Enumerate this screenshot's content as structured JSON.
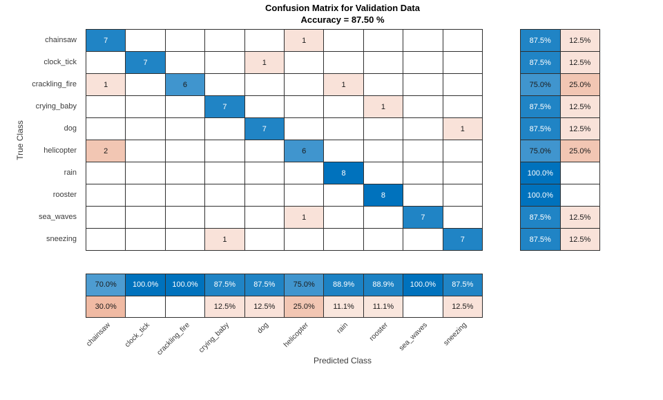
{
  "header": {
    "title": "Confusion Matrix for Validation Data",
    "subtitle": "Accuracy = 87.50 %"
  },
  "axes": {
    "xlabel": "Predicted Class",
    "ylabel": "True Class"
  },
  "chart_data": {
    "type": "heatmap",
    "title": "Confusion Matrix for Validation Data",
    "subtitle": "Accuracy = 87.50 %",
    "xlabel": "Predicted Class",
    "ylabel": "True Class",
    "classes": [
      "chainsaw",
      "clock_tick",
      "crackling_fire",
      "crying_baby",
      "dog",
      "helicopter",
      "rain",
      "rooster",
      "sea_waves",
      "sneezing"
    ],
    "matrix": [
      [
        7,
        0,
        0,
        0,
        0,
        1,
        0,
        0,
        0,
        0
      ],
      [
        0,
        7,
        0,
        0,
        1,
        0,
        0,
        0,
        0,
        0
      ],
      [
        1,
        0,
        6,
        0,
        0,
        0,
        1,
        0,
        0,
        0
      ],
      [
        0,
        0,
        0,
        7,
        0,
        0,
        0,
        1,
        0,
        0
      ],
      [
        0,
        0,
        0,
        0,
        7,
        0,
        0,
        0,
        0,
        1
      ],
      [
        2,
        0,
        0,
        0,
        0,
        6,
        0,
        0,
        0,
        0
      ],
      [
        0,
        0,
        0,
        0,
        0,
        0,
        8,
        0,
        0,
        0
      ],
      [
        0,
        0,
        0,
        0,
        0,
        0,
        0,
        8,
        0,
        0
      ],
      [
        0,
        0,
        0,
        0,
        0,
        1,
        0,
        0,
        7,
        0
      ],
      [
        0,
        0,
        0,
        1,
        0,
        0,
        0,
        0,
        0,
        7
      ]
    ],
    "max_count": 8,
    "row_summary": [
      [
        "87.5%",
        "12.5%"
      ],
      [
        "87.5%",
        "12.5%"
      ],
      [
        "75.0%",
        "25.0%"
      ],
      [
        "87.5%",
        "12.5%"
      ],
      [
        "87.5%",
        "12.5%"
      ],
      [
        "75.0%",
        "25.0%"
      ],
      [
        "100.0%",
        ""
      ],
      [
        "100.0%",
        ""
      ],
      [
        "87.5%",
        "12.5%"
      ],
      [
        "87.5%",
        "12.5%"
      ]
    ],
    "col_summary": [
      [
        "70.0%",
        "100.0%",
        "100.0%",
        "87.5%",
        "87.5%",
        "75.0%",
        "88.9%",
        "88.9%",
        "100.0%",
        "87.5%"
      ],
      [
        "30.0%",
        "",
        "",
        "12.5%",
        "12.5%",
        "25.0%",
        "11.1%",
        "11.1%",
        "",
        "12.5%"
      ]
    ],
    "colors": {
      "correct_base": "#0072bd",
      "incorrect_base": "#d95319",
      "grid_line": "#2e2e2e",
      "text_dark": "#1a1a1a",
      "text_light": "#ffffff"
    },
    "layout": {
      "legend": "none",
      "grid": "on",
      "xtick_rotation_deg": 45
    }
  }
}
